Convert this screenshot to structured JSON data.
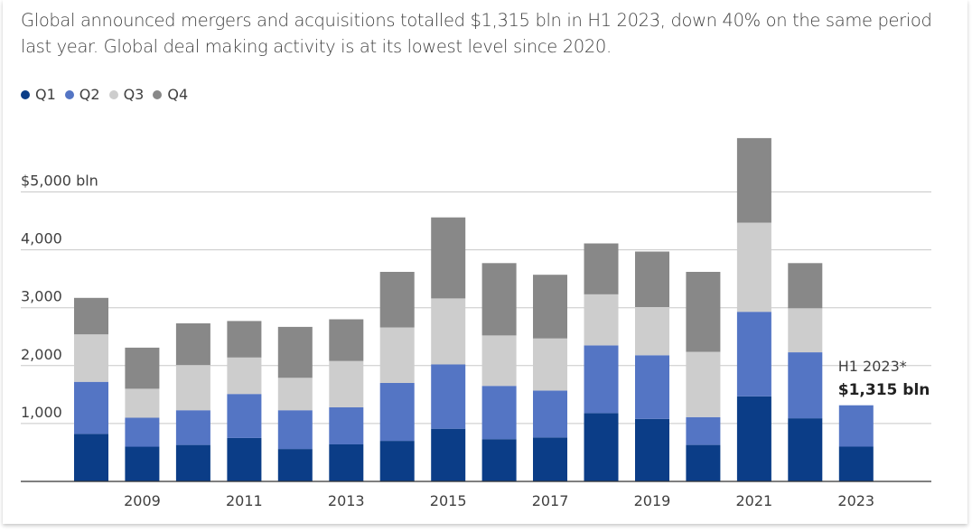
{
  "title": "Global announced mergers and acquisitions totalled $1,315 bln in H1 2023, down 40% on the same period last year. Global deal making activity is at its lowest level since 2020.",
  "legend": [
    {
      "label": "Q1",
      "color": "#0b3d87"
    },
    {
      "label": "Q2",
      "color": "#5475c4"
    },
    {
      "label": "Q3",
      "color": "#cdcdcd"
    },
    {
      "label": "Q4",
      "color": "#888888"
    }
  ],
  "annotation": {
    "label": "H1 2023*",
    "value": "$1,315 bln"
  },
  "chart_data": {
    "type": "bar",
    "stacked": true,
    "categories": [
      "2008",
      "2009",
      "2010",
      "2011",
      "2012",
      "2013",
      "2014",
      "2015",
      "2016",
      "2017",
      "2018",
      "2019",
      "2020",
      "2021",
      "2022",
      "2023"
    ],
    "x_tick_labels": [
      "2009",
      "2011",
      "2013",
      "2015",
      "2017",
      "2019",
      "2021",
      "2023"
    ],
    "y_ticks": [
      {
        "value": 1000,
        "label": "1,000"
      },
      {
        "value": 2000,
        "label": "2,000"
      },
      {
        "value": 3000,
        "label": "3,000"
      },
      {
        "value": 4000,
        "label": "4,000"
      },
      {
        "value": 5000,
        "label": "$5,000 bln"
      }
    ],
    "ylim": [
      0,
      6000
    ],
    "grid": true,
    "legend_position": "top-left",
    "series": [
      {
        "name": "Q1",
        "color": "#0b3d87",
        "values": [
          820,
          600,
          630,
          750,
          560,
          640,
          700,
          910,
          730,
          760,
          1180,
          1080,
          630,
          1470,
          1090,
          600
        ]
      },
      {
        "name": "Q2",
        "color": "#5475c4",
        "values": [
          900,
          500,
          600,
          760,
          670,
          640,
          1000,
          1110,
          920,
          810,
          1170,
          1100,
          480,
          1460,
          1140,
          715
        ]
      },
      {
        "name": "Q3",
        "color": "#cdcdcd",
        "values": [
          820,
          500,
          780,
          630,
          560,
          800,
          960,
          1140,
          870,
          900,
          880,
          830,
          1130,
          1540,
          760,
          0
        ]
      },
      {
        "name": "Q4",
        "color": "#888888",
        "values": [
          630,
          710,
          720,
          630,
          880,
          720,
          960,
          1400,
          1250,
          1100,
          880,
          960,
          1380,
          1460,
          780,
          0
        ]
      }
    ]
  }
}
